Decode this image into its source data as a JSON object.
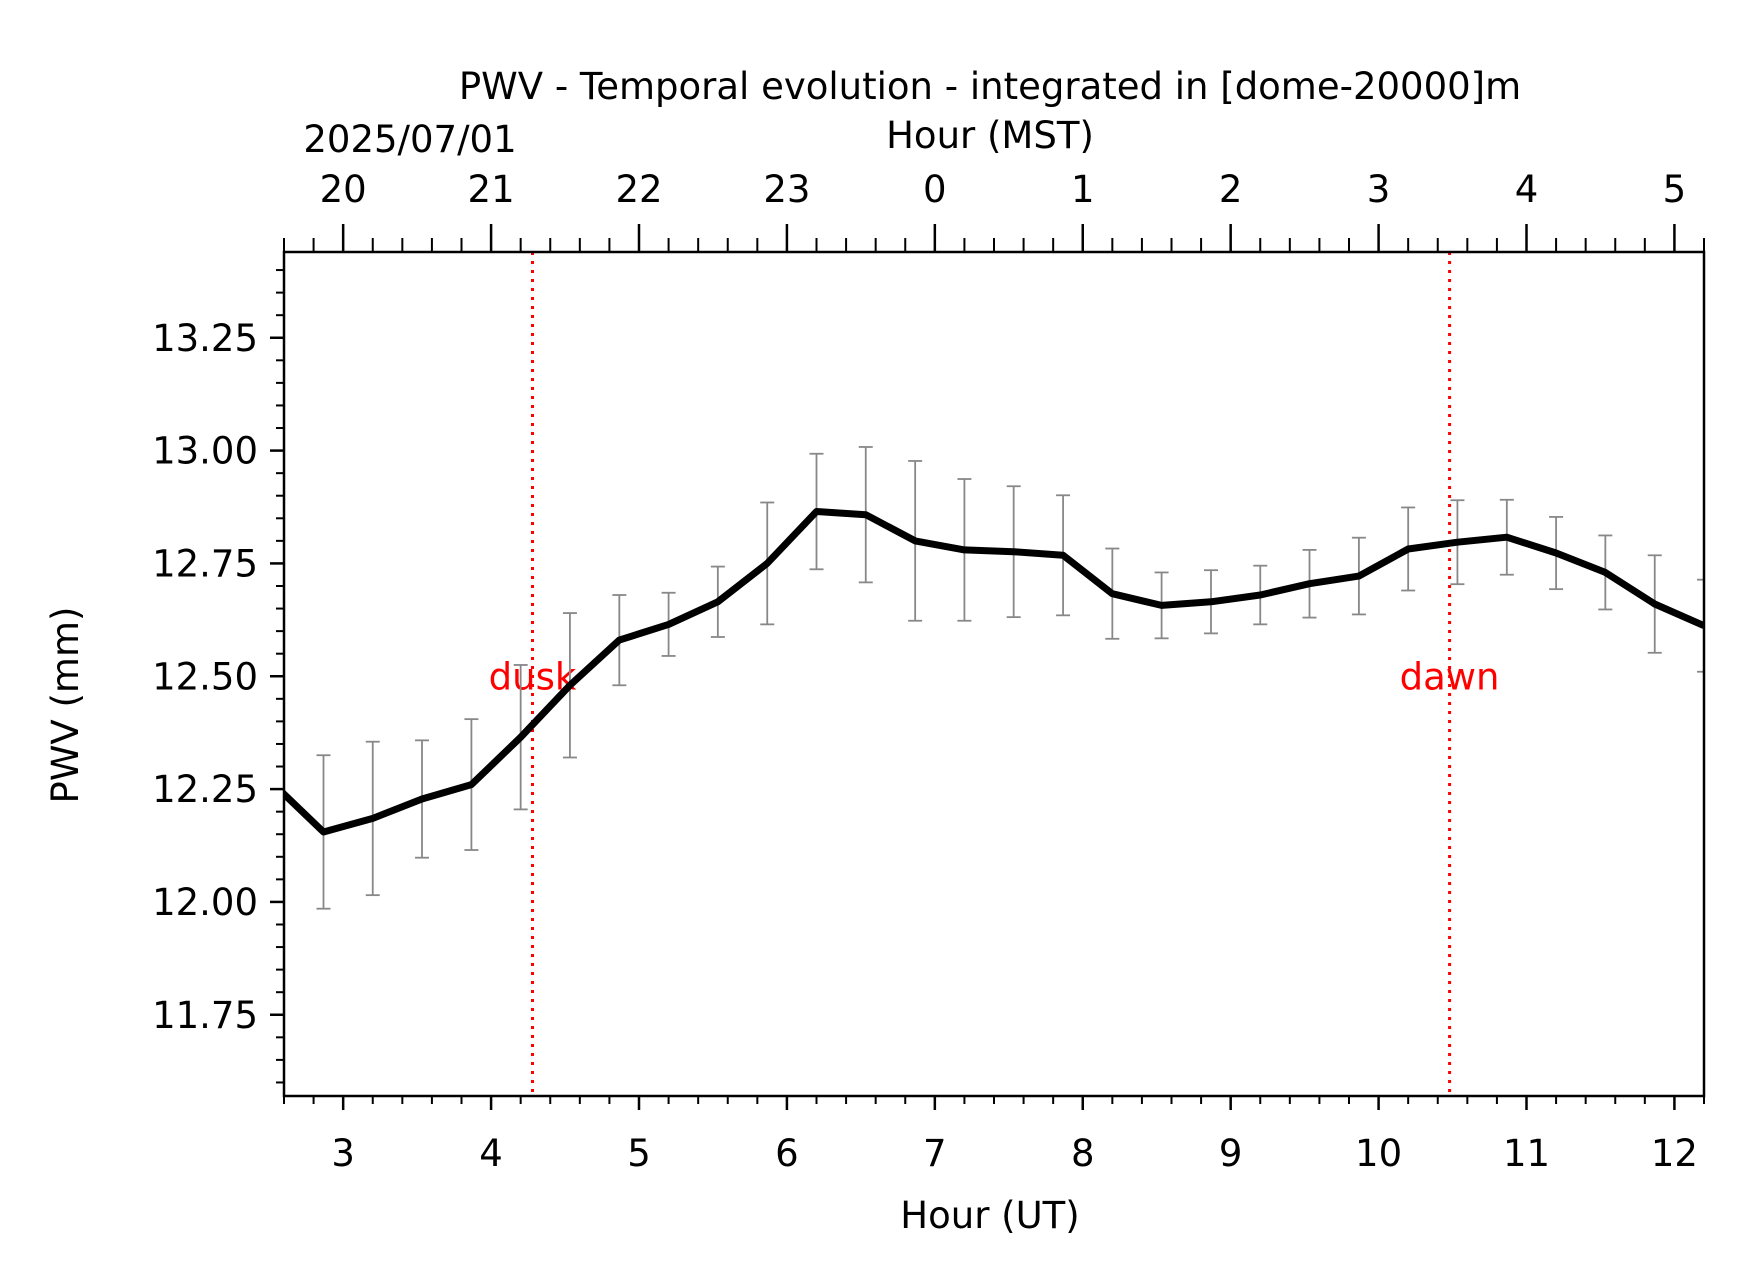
{
  "chart_data": {
    "type": "line",
    "title": "PWV - Temporal evolution - integrated in [dome-20000]m",
    "date_label": "2025/07/01",
    "xlabel": "Hour (UT)",
    "x2label": "Hour (MST)",
    "ylabel": "PWV (mm)",
    "xlim": [
      2.6,
      12.2
    ],
    "ylim": [
      11.57,
      13.44
    ],
    "x_ticks": [
      "3",
      "4",
      "5",
      "6",
      "7",
      "8",
      "9",
      "10",
      "11",
      "12"
    ],
    "x2_ticks": [
      "20",
      "21",
      "22",
      "23",
      "0",
      "1",
      "2",
      "3",
      "4",
      "5"
    ],
    "y_ticks": [
      "11.75",
      "12.00",
      "12.25",
      "12.50",
      "12.75",
      "13.00",
      "13.25"
    ],
    "grid": false,
    "series": [
      {
        "name": "",
        "color": "#000000",
        "errorbar_color": "#888888",
        "x": [
          2.533,
          2.867,
          3.2,
          3.533,
          3.867,
          4.2,
          4.533,
          4.867,
          5.2,
          5.533,
          5.867,
          6.2,
          6.533,
          6.867,
          7.2,
          7.533,
          7.867,
          8.2,
          8.533,
          8.867,
          9.2,
          9.533,
          9.867,
          10.2,
          10.533,
          10.867,
          11.2,
          11.533,
          11.867,
          12.2
        ],
        "y": [
          12.26,
          12.155,
          12.185,
          12.228,
          12.26,
          12.365,
          12.48,
          12.58,
          12.615,
          12.665,
          12.75,
          12.865,
          12.858,
          12.8,
          12.78,
          12.776,
          12.768,
          12.683,
          12.657,
          12.665,
          12.68,
          12.705,
          12.722,
          12.782,
          12.797,
          12.808,
          12.773,
          12.73,
          12.66,
          12.612
        ],
        "yerr": [
          0.17,
          0.17,
          0.17,
          0.13,
          0.145,
          0.16,
          0.16,
          0.1,
          0.07,
          0.078,
          0.135,
          0.128,
          0.15,
          0.177,
          0.157,
          0.145,
          0.133,
          0.1,
          0.073,
          0.07,
          0.065,
          0.075,
          0.085,
          0.092,
          0.093,
          0.083,
          0.08,
          0.082,
          0.108,
          0.102
        ]
      }
    ],
    "annotations": [
      {
        "label": "dusk",
        "x": 4.28,
        "color": "#ff0000"
      },
      {
        "label": "dawn",
        "x": 10.48,
        "color": "#ff0000"
      }
    ]
  }
}
